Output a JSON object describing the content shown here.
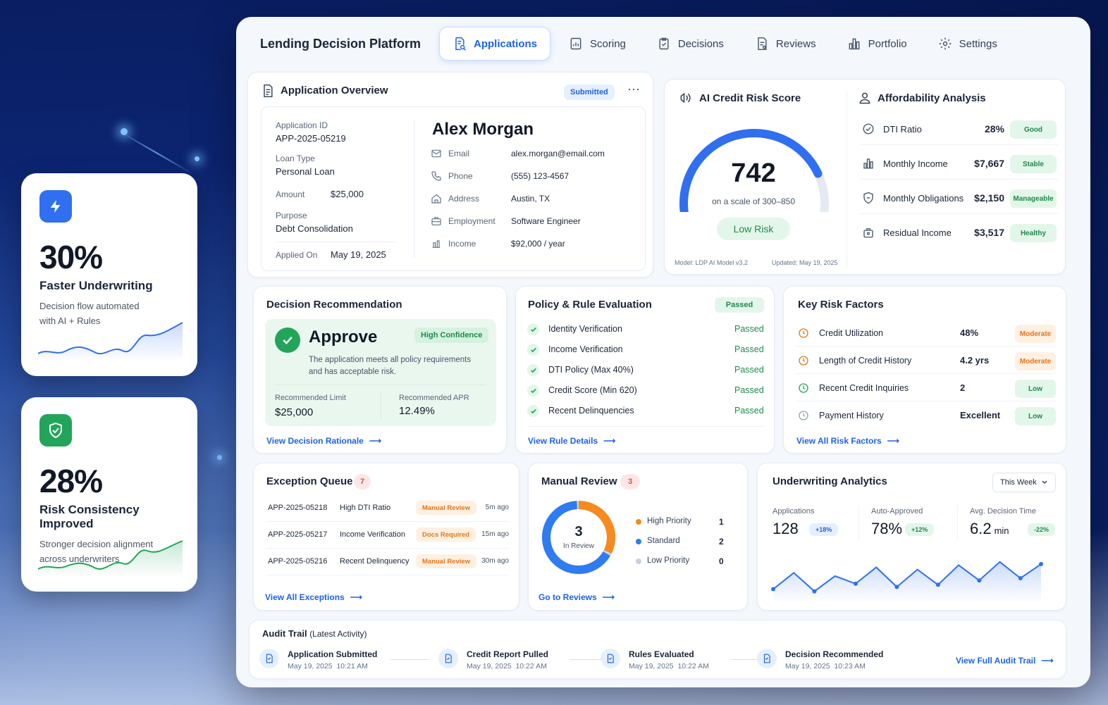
{
  "stats": [
    {
      "value": "30%",
      "title": "Faster Underwriting",
      "desc": "Decision flow automated\nwith AI + Rules",
      "icon": "lightning-icon",
      "color": "#2f6ff0"
    },
    {
      "value": "28%",
      "title": "Risk Consistency Improved",
      "desc": "Stronger decision alignment\nacross underwriters",
      "icon": "shield-check-icon",
      "color": "#22a55a"
    }
  ],
  "app_title": "Lending Decision Platform",
  "tabs": [
    {
      "label": "Applications",
      "icon": "document-search-icon",
      "active": true
    },
    {
      "label": "Scoring",
      "icon": "chart-doc-icon"
    },
    {
      "label": "Decisions",
      "icon": "clipboard-check-icon"
    },
    {
      "label": "Reviews",
      "icon": "doc-review-icon"
    },
    {
      "label": "Portfolio",
      "icon": "bar-chart-icon"
    },
    {
      "label": "Settings",
      "icon": "gear-icon"
    }
  ],
  "overview": {
    "title": "Application Overview",
    "status": "Submitted",
    "more": "⋯",
    "app_id_label": "Application ID",
    "app_id": "APP-2025-05219",
    "loan_type_label": "Loan Type",
    "loan_type": "Personal Loan",
    "amount_label": "Amount",
    "amount": "$25,000",
    "purpose_label": "Purpose",
    "purpose": "Debt Consolidation",
    "applied_label": "Applied On",
    "applied": "May 19, 2025",
    "name": "Alex Morgan",
    "contact": [
      {
        "label": "Email",
        "value": "alex.morgan@email.com",
        "icon": "mail-icon"
      },
      {
        "label": "Phone",
        "value": "(555) 123-4567",
        "icon": "phone-icon"
      },
      {
        "label": "Address",
        "value": "Austin, TX",
        "icon": "home-icon"
      },
      {
        "label": "Employment",
        "value": "Software Engineer",
        "icon": "briefcase-icon"
      },
      {
        "label": "Income",
        "value": "$92,000 / year",
        "icon": "income-icon"
      }
    ]
  },
  "credit": {
    "title": "AI Credit Risk Score",
    "score": "742",
    "scale": "on a scale of 300–850",
    "score_fraction": 0.77,
    "risk": "Low Risk",
    "model": "Model: LDP AI Model v3.2",
    "updated": "Updated: May 19, 2025"
  },
  "afford": {
    "title": "Affordability Analysis",
    "rows": [
      {
        "label": "DTI Ratio",
        "value": "28%",
        "tag": "Good",
        "icon": "check-circle-icon"
      },
      {
        "label": "Monthly Income",
        "value": "$7,667",
        "tag": "Stable",
        "icon": "bar-chart-icon"
      },
      {
        "label": "Monthly Obligations",
        "value": "$2,150",
        "tag": "Manageable",
        "icon": "wallet-icon"
      },
      {
        "label": "Residual Income",
        "value": "$3,517",
        "tag": "Healthy",
        "icon": "bag-icon"
      }
    ]
  },
  "decision": {
    "title": "Decision Recommendation",
    "result": "Approve",
    "confidence": "High Confidence",
    "desc": "The application meets all policy requirements\nand has acceptable risk.",
    "limit_label": "Recommended Limit",
    "limit": "$25,000",
    "apr_label": "Recommended APR",
    "apr": "12.49%",
    "link": "View Decision Rationale"
  },
  "policy": {
    "title": "Policy & Rule Evaluation",
    "status": "Passed",
    "rules": [
      {
        "label": "Identity Verification",
        "status": "Passed"
      },
      {
        "label": "Income Verification",
        "status": "Passed"
      },
      {
        "label": "DTI Policy (Max 40%)",
        "status": "Passed"
      },
      {
        "label": "Credit Score (Min 620)",
        "status": "Passed"
      },
      {
        "label": "Recent Delinquencies",
        "status": "Passed"
      }
    ],
    "link": "View Rule Details"
  },
  "risk": {
    "title": "Key Risk Factors",
    "rows": [
      {
        "label": "Credit Utilization",
        "value": "48%",
        "tag": "Moderate",
        "level": "o"
      },
      {
        "label": "Length of Credit History",
        "value": "4.2 yrs",
        "tag": "Moderate",
        "level": "o"
      },
      {
        "label": "Recent Credit Inquiries",
        "value": "2",
        "tag": "Low",
        "level": "g"
      },
      {
        "label": "Payment History",
        "value": "Excellent",
        "tag": "Low",
        "level": "n"
      }
    ],
    "link": "View All Risk Factors"
  },
  "exceptions": {
    "title": "Exception Queue",
    "count": "7",
    "rows": [
      {
        "id": "APP-2025-05218",
        "reason": "High DTI Ratio",
        "tag": "Manual Review",
        "time": "5m ago"
      },
      {
        "id": "APP-2025-05217",
        "reason": "Income Verification",
        "tag": "Docs Required",
        "time": "15m ago"
      },
      {
        "id": "APP-2025-05216",
        "reason": "Recent Delinquency",
        "tag": "Manual Review",
        "time": "30m ago"
      }
    ],
    "link": "View All Exceptions"
  },
  "manual": {
    "title": "Manual Review",
    "count": "3",
    "center_value": "3",
    "center_label": "In Review",
    "legend": [
      {
        "label": "High Priority",
        "value": "1",
        "color": "#f58a1f"
      },
      {
        "label": "Standard",
        "value": "2",
        "color": "#2f7bf0"
      },
      {
        "label": "Low Priority",
        "value": "0",
        "color": "#c9d1dc"
      }
    ],
    "link": "Go to Reviews"
  },
  "analytics": {
    "title": "Underwriting Analytics",
    "range": "This Week",
    "kpis": [
      {
        "label": "Applications",
        "value": "128",
        "unit": "",
        "delta": "+18%"
      },
      {
        "label": "Auto-Approved",
        "value": "78%",
        "unit": "",
        "delta": "+12%"
      },
      {
        "label": "Avg. Decision Time",
        "value": "6.2",
        "unit": "min",
        "delta": "-22%"
      }
    ],
    "trend": [
      40,
      55,
      38,
      52,
      45,
      60,
      42,
      58,
      44,
      62,
      48,
      65,
      50,
      63
    ]
  },
  "audit": {
    "title": "Audit Trail",
    "subtitle": "(Latest Activity)",
    "steps": [
      {
        "title": "Application Submitted",
        "time": "May 19, 2025  10:21 AM"
      },
      {
        "title": "Credit Report Pulled",
        "time": "May 19, 2025  10:22 AM"
      },
      {
        "title": "Rules Evaluated",
        "time": "May 19, 2025  10:22 AM"
      },
      {
        "title": "Decision Recommended",
        "time": "May 19, 2025  10:23 AM"
      }
    ],
    "link": "View Full Audit Trail"
  }
}
